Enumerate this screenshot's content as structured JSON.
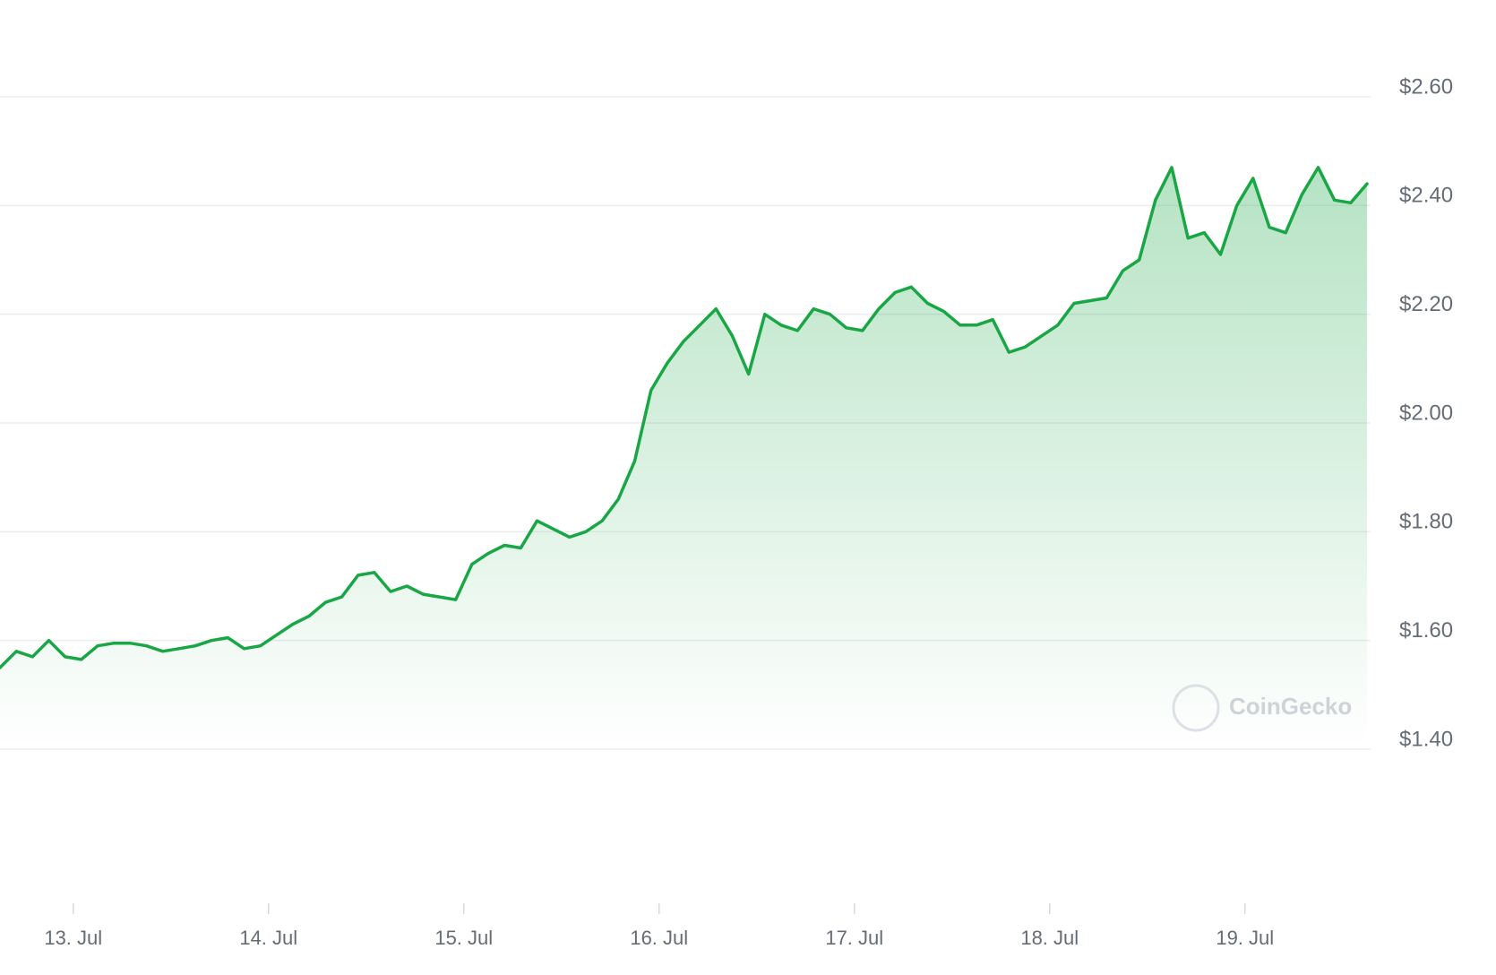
{
  "chart_data": {
    "type": "line",
    "watermark": "CoinGecko",
    "color": "#19a645",
    "grid": true,
    "values": [
      1.55,
      1.58,
      1.57,
      1.6,
      1.57,
      1.565,
      1.59,
      1.595,
      1.595,
      1.59,
      1.58,
      1.585,
      1.59,
      1.6,
      1.605,
      1.585,
      1.59,
      1.61,
      1.63,
      1.645,
      1.67,
      1.68,
      1.72,
      1.725,
      1.69,
      1.7,
      1.685,
      1.68,
      1.675,
      1.74,
      1.76,
      1.775,
      1.77,
      1.82,
      1.805,
      1.79,
      1.8,
      1.82,
      1.86,
      1.93,
      2.06,
      2.11,
      2.15,
      2.18,
      2.21,
      2.16,
      2.09,
      2.2,
      2.18,
      2.17,
      2.21,
      2.2,
      2.175,
      2.17,
      2.21,
      2.24,
      2.25,
      2.22,
      2.205,
      2.18,
      2.18,
      2.19,
      2.13,
      2.14,
      2.16,
      2.18,
      2.22,
      2.225,
      2.23,
      2.28,
      2.3,
      2.41,
      2.47,
      2.34,
      2.35,
      2.31,
      2.4,
      2.45,
      2.36,
      2.35,
      2.42,
      2.47,
      2.41,
      2.405,
      2.44
    ],
    "xlim": [
      0,
      84
    ],
    "xticks": [
      {
        "value": 4.5,
        "label": "13. Jul"
      },
      {
        "value": 16.5,
        "label": "14. Jul"
      },
      {
        "value": 28.5,
        "label": "15. Jul"
      },
      {
        "value": 40.5,
        "label": "16. Jul"
      },
      {
        "value": 52.5,
        "label": "17. Jul"
      },
      {
        "value": 64.5,
        "label": "18. Jul"
      },
      {
        "value": 76.5,
        "label": "19. Jul"
      }
    ],
    "ylim": [
      1.4,
      2.6
    ],
    "yticks": [
      {
        "value": 1.4,
        "label": "$1.40"
      },
      {
        "value": 1.6,
        "label": "$1.60"
      },
      {
        "value": 1.8,
        "label": "$1.80"
      },
      {
        "value": 2.0,
        "label": "$2.00"
      },
      {
        "value": 2.2,
        "label": "$2.20"
      },
      {
        "value": 2.4,
        "label": "$2.40"
      },
      {
        "value": 2.6,
        "label": "$2.60"
      }
    ]
  }
}
